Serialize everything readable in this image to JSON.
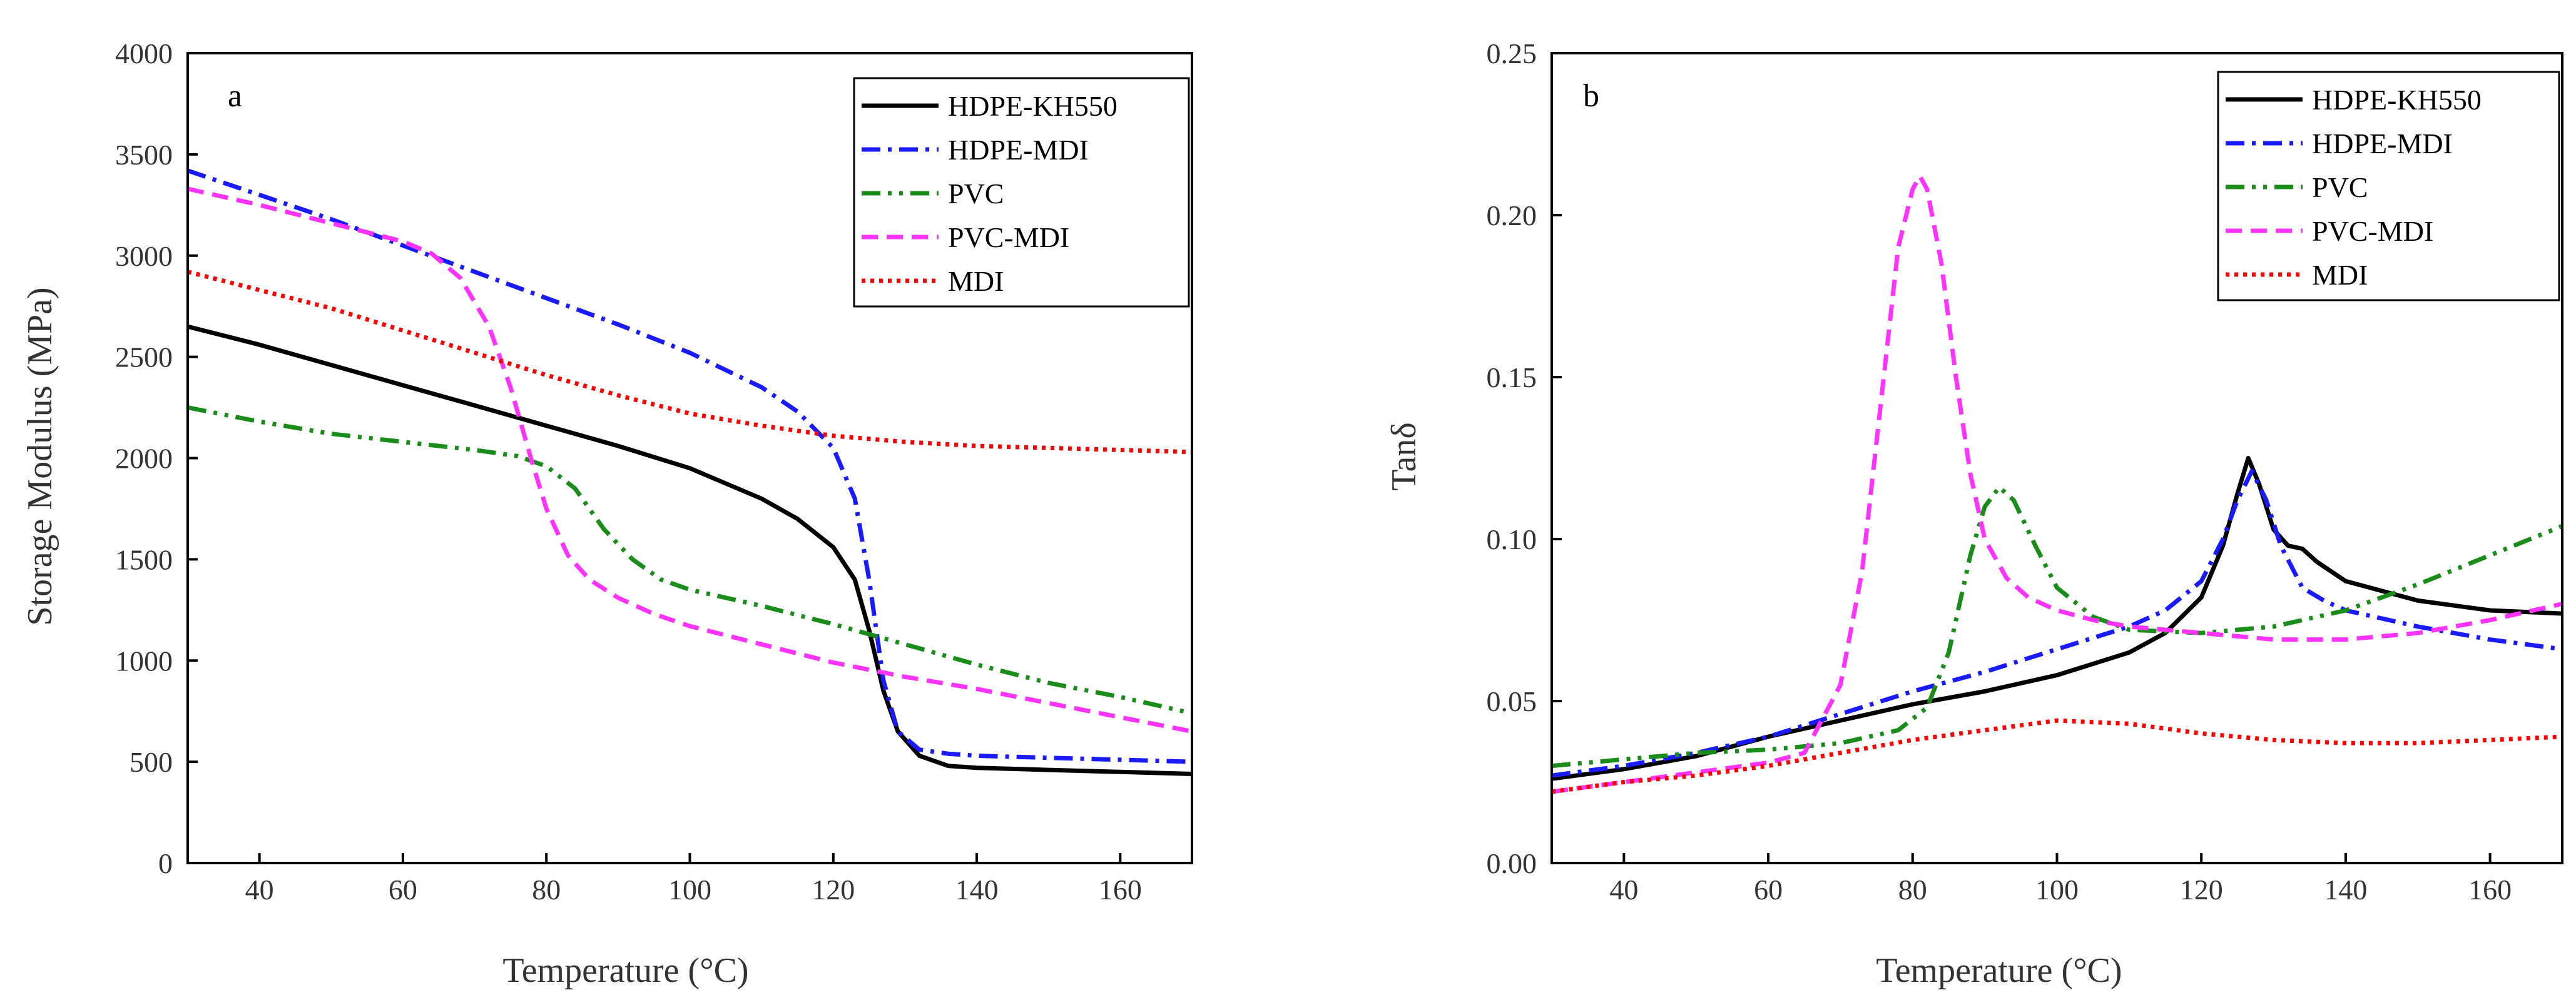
{
  "colors": {
    "HDPE-KH550": "#000000",
    "HDPE-MDI": "#1a1aff",
    "PVC": "#1a8c1a",
    "PVC-MDI": "#ff33ff",
    "MDI": "#ff0000"
  },
  "chart_data": [
    {
      "type": "line",
      "panel": "a",
      "xlabel": "Temperature (°C)",
      "ylabel": "Storage Modulus (MPa)",
      "xlim": [
        30,
        170
      ],
      "ylim": [
        0,
        4000
      ],
      "xticks": [
        40,
        60,
        80,
        100,
        120,
        140,
        160
      ],
      "yticks": [
        0,
        500,
        1000,
        1500,
        2000,
        2500,
        3000,
        3500,
        4000
      ],
      "ytick_labels": [
        "0",
        "500",
        "1000",
        "1500",
        "2000",
        "2500",
        "3000",
        "3500",
        "4000"
      ],
      "legend_position": "top-right",
      "series": [
        {
          "name": "HDPE-KH550",
          "dash": "solid",
          "x": [
            30,
            40,
            50,
            60,
            70,
            80,
            90,
            100,
            110,
            115,
            120,
            123,
            125,
            127,
            129,
            132,
            136,
            140,
            150,
            160,
            170
          ],
          "y": [
            2650,
            2560,
            2460,
            2360,
            2260,
            2160,
            2060,
            1950,
            1800,
            1700,
            1560,
            1400,
            1150,
            850,
            650,
            530,
            480,
            470,
            460,
            450,
            440
          ]
        },
        {
          "name": "HDPE-MDI",
          "dash": "dashdot",
          "x": [
            30,
            40,
            50,
            60,
            70,
            80,
            90,
            100,
            110,
            115,
            120,
            123,
            125,
            127,
            129,
            132,
            136,
            140,
            150,
            160,
            170
          ],
          "y": [
            3420,
            3300,
            3180,
            3050,
            2920,
            2790,
            2660,
            2520,
            2350,
            2230,
            2050,
            1800,
            1400,
            900,
            650,
            560,
            540,
            530,
            520,
            510,
            500
          ]
        },
        {
          "name": "PVC",
          "dash": "dashdotdot",
          "x": [
            30,
            40,
            50,
            60,
            70,
            76,
            80,
            84,
            88,
            92,
            96,
            100,
            110,
            120,
            130,
            140,
            150,
            160,
            170
          ],
          "y": [
            2250,
            2180,
            2120,
            2080,
            2040,
            2010,
            1960,
            1850,
            1650,
            1500,
            1400,
            1350,
            1270,
            1180,
            1080,
            980,
            890,
            820,
            740
          ]
        },
        {
          "name": "PVC-MDI",
          "dash": "dashed",
          "x": [
            30,
            40,
            50,
            60,
            64,
            68,
            72,
            75,
            78,
            80,
            83,
            86,
            90,
            95,
            100,
            110,
            120,
            130,
            140,
            150,
            160,
            170
          ],
          "y": [
            3330,
            3250,
            3160,
            3070,
            3010,
            2890,
            2650,
            2350,
            1980,
            1750,
            1520,
            1400,
            1310,
            1230,
            1170,
            1080,
            990,
            920,
            860,
            790,
            720,
            650
          ]
        },
        {
          "name": "MDI",
          "dash": "dotted",
          "x": [
            30,
            40,
            50,
            60,
            70,
            80,
            90,
            100,
            110,
            120,
            130,
            140,
            150,
            160,
            170
          ],
          "y": [
            2920,
            2830,
            2740,
            2630,
            2520,
            2410,
            2310,
            2220,
            2160,
            2110,
            2080,
            2060,
            2050,
            2040,
            2030
          ]
        }
      ]
    },
    {
      "type": "line",
      "panel": "b",
      "xlabel": "Temperature (°C)",
      "ylabel": "Tanδ",
      "xlim": [
        30,
        170
      ],
      "ylim": [
        0,
        0.25
      ],
      "xticks": [
        40,
        60,
        80,
        100,
        120,
        140,
        160
      ],
      "yticks": [
        0,
        0.05,
        0.1,
        0.15,
        0.2,
        0.25
      ],
      "ytick_labels": [
        "0.00",
        "0.05",
        "0.10",
        "0.15",
        "0.20",
        "0.25"
      ],
      "legend_position": "top-right",
      "series": [
        {
          "name": "HDPE-KH550",
          "dash": "solid",
          "x": [
            30,
            40,
            50,
            60,
            70,
            80,
            90,
            100,
            110,
            115,
            120,
            123,
            125,
            126.5,
            128,
            130,
            132,
            134,
            136,
            140,
            150,
            160,
            170
          ],
          "y": [
            0.026,
            0.029,
            0.033,
            0.039,
            0.044,
            0.049,
            0.053,
            0.058,
            0.065,
            0.071,
            0.082,
            0.098,
            0.114,
            0.125,
            0.117,
            0.103,
            0.098,
            0.097,
            0.093,
            0.087,
            0.081,
            0.078,
            0.077
          ]
        },
        {
          "name": "HDPE-MDI",
          "dash": "dashdot",
          "x": [
            30,
            40,
            50,
            60,
            70,
            80,
            90,
            100,
            110,
            115,
            120,
            123,
            125,
            127,
            129,
            131,
            134,
            137,
            140,
            150,
            160,
            170
          ],
          "y": [
            0.027,
            0.03,
            0.034,
            0.039,
            0.046,
            0.053,
            0.059,
            0.066,
            0.073,
            0.078,
            0.087,
            0.1,
            0.112,
            0.121,
            0.112,
            0.098,
            0.085,
            0.081,
            0.078,
            0.073,
            0.069,
            0.066
          ]
        },
        {
          "name": "PVC",
          "dash": "dashdotdot",
          "x": [
            30,
            40,
            50,
            60,
            70,
            78,
            82,
            85,
            88,
            90,
            92,
            94,
            97,
            100,
            105,
            110,
            120,
            130,
            140,
            150,
            160,
            170
          ],
          "y": [
            0.03,
            0.032,
            0.034,
            0.035,
            0.037,
            0.041,
            0.048,
            0.065,
            0.095,
            0.11,
            0.116,
            0.112,
            0.098,
            0.085,
            0.076,
            0.072,
            0.071,
            0.073,
            0.078,
            0.086,
            0.095,
            0.104
          ]
        },
        {
          "name": "PVC-MDI",
          "dash": "dashed",
          "x": [
            30,
            40,
            50,
            60,
            65,
            70,
            73,
            76,
            78,
            80,
            81,
            82,
            84,
            86,
            88,
            90,
            93,
            96,
            100,
            105,
            110,
            120,
            130,
            140,
            150,
            160,
            170
          ],
          "y": [
            0.022,
            0.025,
            0.028,
            0.031,
            0.034,
            0.055,
            0.09,
            0.15,
            0.19,
            0.208,
            0.212,
            0.208,
            0.185,
            0.15,
            0.12,
            0.1,
            0.088,
            0.082,
            0.078,
            0.075,
            0.073,
            0.071,
            0.069,
            0.069,
            0.071,
            0.075,
            0.08
          ]
        },
        {
          "name": "MDI",
          "dash": "dotted",
          "x": [
            30,
            40,
            50,
            60,
            70,
            80,
            90,
            100,
            110,
            120,
            130,
            140,
            150,
            160,
            170
          ],
          "y": [
            0.022,
            0.025,
            0.027,
            0.03,
            0.034,
            0.038,
            0.041,
            0.044,
            0.043,
            0.04,
            0.038,
            0.037,
            0.037,
            0.038,
            0.039
          ]
        }
      ]
    }
  ]
}
